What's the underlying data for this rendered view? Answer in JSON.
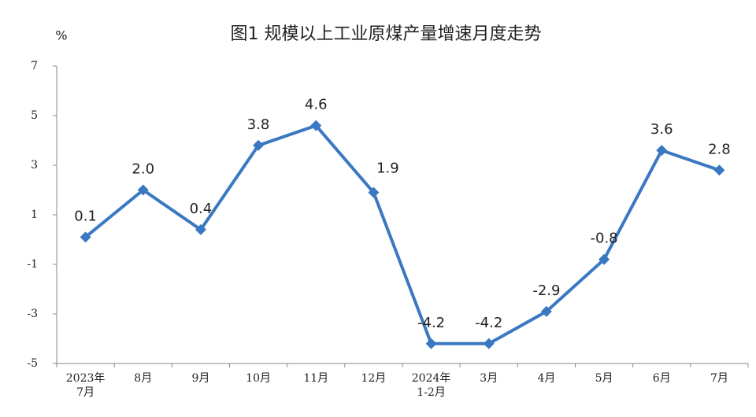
{
  "chart_data": {
    "type": "line",
    "title": "图1  规模以上工业原煤产量增速月度走势",
    "y_label": "%",
    "categories": [
      "2023年\n7月",
      "8月",
      "9月",
      "10月",
      "11月",
      "12月",
      "2024年\n1-2月",
      "3月",
      "4月",
      "5月",
      "6月",
      "7月"
    ],
    "series": [
      {
        "name": "增速",
        "color": "#3b78c2",
        "values": [
          0.1,
          2.0,
          0.4,
          3.8,
          4.6,
          1.9,
          -4.2,
          -4.2,
          -2.9,
          -0.8,
          3.6,
          2.8
        ],
        "value_labels": [
          "0.1",
          "2.0",
          "0.4",
          "3.8",
          "4.6",
          "1.9",
          "-4.2",
          "-4.2",
          "-2.9",
          "-0.8",
          "3.6",
          "2.8"
        ]
      }
    ],
    "ylim": [
      -5,
      7
    ],
    "yticks": [
      -5,
      -3,
      -1,
      1,
      3,
      5,
      7
    ],
    "grid": false
  }
}
